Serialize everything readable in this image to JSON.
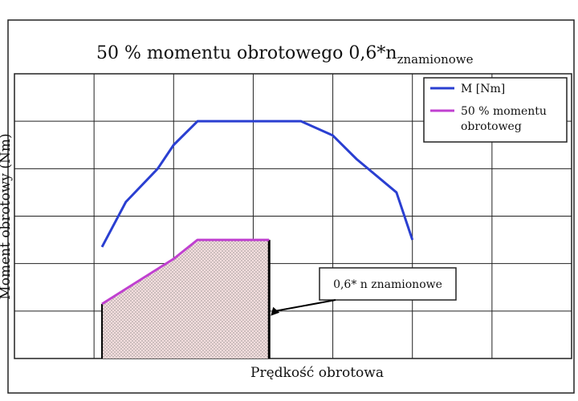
{
  "chart_data": {
    "type": "line",
    "title_main": "50 % momentu obrotowego 0,6*n",
    "title_sub": "znamionowe",
    "xlabel": "Prędkość obrotowa",
    "ylabel": "Moment obrotowy (Nm)",
    "xlim": [
      0,
      7
    ],
    "ylim": [
      0,
      6
    ],
    "grid": true,
    "legend_position": "top-right",
    "series": [
      {
        "name": "M [Nm]",
        "color": "#2a3fd1",
        "x": [
          1.1,
          1.4,
          1.8,
          2.0,
          2.3,
          3.0,
          3.6,
          4.0,
          4.3,
          4.8,
          5.0
        ],
        "y": [
          2.35,
          3.3,
          4.0,
          4.5,
          5.0,
          5.0,
          5.0,
          4.7,
          4.2,
          3.5,
          2.5
        ]
      },
      {
        "name": "50 % momentu obrotoweg",
        "color": "#c040d0",
        "x": [
          1.1,
          2.0,
          2.3,
          3.2
        ],
        "y": [
          1.15,
          2.1,
          2.5,
          2.5
        ]
      }
    ],
    "annotation": {
      "text": "0,6* n znamionowe",
      "x": 3.2,
      "y": 0.9
    }
  },
  "colors": {
    "frame": "#222222",
    "grid": "#222222",
    "fill": "#f3dede",
    "dot": "#6b6b6b",
    "shade_edge": "#000000"
  }
}
